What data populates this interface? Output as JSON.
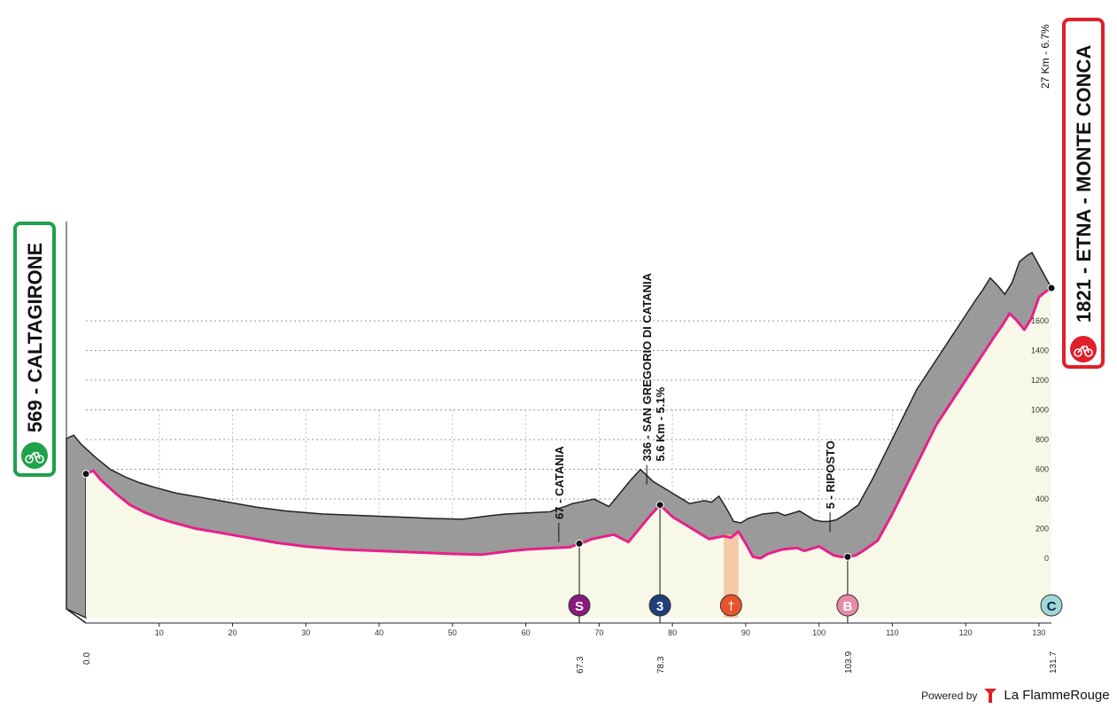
{
  "chart_data": {
    "type": "area",
    "title": "",
    "xlabel": "",
    "ylabel": "",
    "xlim": [
      0,
      131.7
    ],
    "ylim": [
      -400,
      1900
    ],
    "x_ticks": [
      "10",
      "20",
      "30",
      "40",
      "50",
      "60",
      "70",
      "80",
      "90",
      "100",
      "110",
      "120",
      "130"
    ],
    "y_ticks": [
      "0",
      "200",
      "400",
      "600",
      "800",
      "1000",
      "1200",
      "1400",
      "1600"
    ],
    "start": {
      "name": "569 - CALTAGIRONE",
      "altitude": 569,
      "km": "0.0"
    },
    "finish": {
      "name": "1821 - ETNA - MONTE CONCA",
      "altitude": 1821,
      "km": "131.7",
      "climb": "27 Km - 6.7%"
    },
    "points_of_interest": [
      {
        "label": "67 - CATANIA",
        "km": 64.5,
        "alt": 60
      },
      {
        "label": "336 - SAN GREGORIO DI CATANIA",
        "sub": "5.6 Km - 5.1%",
        "km": 76.5,
        "alt": 450
      },
      {
        "label": "5 - RIPOSTO",
        "km": 101.5,
        "alt": 130
      }
    ],
    "markers": [
      {
        "km": "67.3",
        "symbol": "S",
        "type": "sprint",
        "alt": 100,
        "color": "#8a1a7a"
      },
      {
        "km": "78.3",
        "symbol": "3",
        "type": "kom",
        "alt": 360,
        "color": "#1f3f7a"
      },
      {
        "km": "103.9",
        "symbol": "B",
        "type": "bonus",
        "alt": 10,
        "color": "#e88aa8"
      },
      {
        "km": "131.7",
        "symbol": "C",
        "type": "finish",
        "alt": 1821,
        "color": "#9fd8d8"
      }
    ],
    "feed_zone": {
      "km_from": 87,
      "km_to": 89,
      "color": "#f5c4a0"
    },
    "series": [
      {
        "x": [
          0,
          1,
          2,
          4,
          6,
          8,
          10,
          12,
          15,
          18,
          22,
          26,
          30,
          35,
          40,
          45,
          50,
          54,
          58,
          60,
          62,
          64,
          66,
          67.3,
          68,
          69,
          70,
          72,
          74,
          76,
          77,
          78.3,
          80,
          82,
          84,
          85,
          86,
          87,
          88,
          89,
          90,
          91,
          92,
          93,
          95,
          97,
          98,
          100,
          101,
          102,
          103,
          103.9,
          105,
          106,
          108,
          110,
          112,
          114,
          116,
          118,
          120,
          122,
          124,
          125,
          126,
          127,
          128,
          129,
          130,
          131,
          131.7
        ],
        "y": [
          569,
          590,
          530,
          440,
          360,
          310,
          270,
          240,
          200,
          175,
          140,
          105,
          80,
          60,
          50,
          40,
          30,
          25,
          50,
          60,
          65,
          70,
          75,
          100,
          110,
          130,
          140,
          160,
          110,
          230,
          290,
          360,
          280,
          220,
          160,
          130,
          140,
          150,
          140,
          180,
          100,
          10,
          0,
          30,
          60,
          70,
          50,
          80,
          50,
          20,
          10,
          10,
          20,
          50,
          120,
          300,
          500,
          700,
          900,
          1050,
          1200,
          1350,
          1500,
          1570,
          1650,
          1600,
          1540,
          1620,
          1760,
          1800,
          1821
        ]
      }
    ],
    "legend": "none",
    "grid": "horizontal dotted"
  },
  "footer": {
    "powered_by": "Powered by",
    "brand": "La FlammeRouge"
  },
  "colors": {
    "profile_fill": "#f7f8e8",
    "shadow": "#9a9a9a",
    "road_line": "#e8208a",
    "start_badge": "#1ea14a",
    "finish_badge": "#e0202a"
  }
}
